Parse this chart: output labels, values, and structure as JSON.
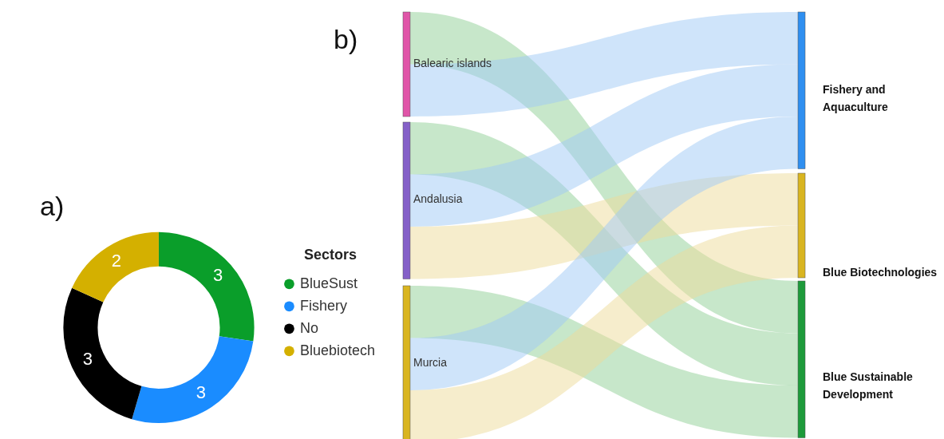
{
  "chart_data": [
    {
      "type": "donut",
      "title": "a)",
      "categories": [
        "BlueSust",
        "Fishery",
        "No",
        "Bluebiotech"
      ],
      "values": [
        3,
        3,
        3,
        2
      ],
      "colors": [
        "#0a9e2a",
        "#1a8cff",
        "#000000",
        "#d4b000"
      ],
      "legend_title": "Sectors",
      "legend": "right",
      "data_labels": true
    },
    {
      "type": "other",
      "title": "b)",
      "annotations": [
        "Balearic islands",
        "Andalusia",
        "Murcia",
        "Fishery and Aquaculture",
        "Blue Biotechnologies",
        "Blue Sustainable Development"
      ]
    }
  ]
}
